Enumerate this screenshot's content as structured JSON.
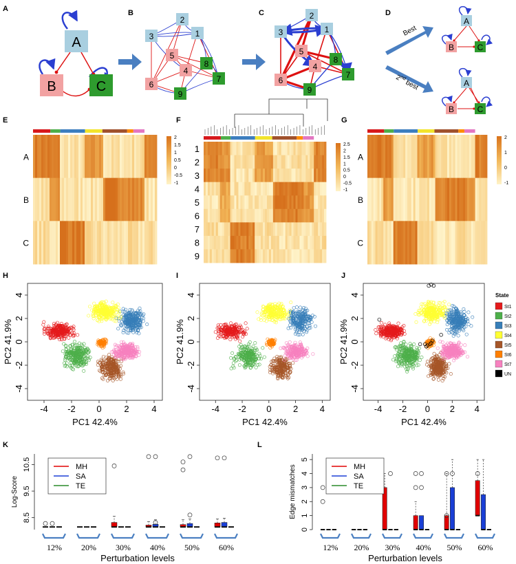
{
  "panels": {
    "A": "A",
    "B": "B",
    "C": "C",
    "D": "D",
    "E": "E",
    "F": "F",
    "G": "G",
    "H": "H",
    "I": "I",
    "J": "J",
    "K": "K",
    "L": "L"
  },
  "network_A": {
    "nodes": [
      "A",
      "B",
      "C"
    ]
  },
  "network_BC": {
    "nodes": [
      "1",
      "2",
      "3",
      "4",
      "5",
      "6",
      "7",
      "8",
      "9"
    ]
  },
  "network_D": {
    "best_label": "Best",
    "second_label": "2",
    "second_sup": "nd",
    "second_rest": " best",
    "nodes": [
      "A",
      "B",
      "C"
    ]
  },
  "heatmaps": {
    "E": {
      "rows": [
        "A",
        "B",
        "C"
      ],
      "scale": [
        "2",
        "1.5",
        "1",
        "0.5",
        "0",
        "-0.5",
        "-1"
      ]
    },
    "F": {
      "rows": [
        "1",
        "2",
        "3",
        "4",
        "5",
        "6",
        "7",
        "8",
        "9"
      ],
      "scale": [
        "2.5",
        "2",
        "1.5",
        "1",
        "0.5",
        "0",
        "-0.5",
        "-1"
      ]
    },
    "G": {
      "rows": [
        "A",
        "B",
        "C"
      ],
      "scale": [
        "2",
        "1",
        "0",
        "-1"
      ]
    }
  },
  "pca": {
    "xlabel": "PC1 42.4%",
    "ylabel": "PC2 41.9%",
    "xticks": [
      "-4",
      "-2",
      "0",
      "2",
      "4"
    ],
    "yticks": [
      "-4",
      "-2",
      "0",
      "2",
      "4"
    ],
    "legend_title": "State",
    "states": [
      {
        "name": "St1",
        "color": "#e41a1c"
      },
      {
        "name": "St2",
        "color": "#4daf4a"
      },
      {
        "name": "St3",
        "color": "#377eb8"
      },
      {
        "name": "St4",
        "color": "#ffff33"
      },
      {
        "name": "St5",
        "color": "#a65628"
      },
      {
        "name": "St6",
        "color": "#ff7f00"
      },
      {
        "name": "St7",
        "color": "#f781bf"
      },
      {
        "name": "UN",
        "color": "#000000"
      }
    ]
  },
  "chart_data": [
    {
      "type": "box",
      "panel": "K",
      "ylabel": "Log-Score",
      "xlabel": "Perturbation levels",
      "categories": [
        "12%",
        "20%",
        "30%",
        "40%",
        "50%",
        "60%"
      ],
      "yticks": [
        "8.5",
        "9.5",
        "10.5"
      ],
      "ylim": [
        8.05,
        10.9
      ],
      "legend": [
        {
          "name": "MH",
          "color": "#e00000"
        },
        {
          "name": "SA",
          "color": "#1a3fd6"
        },
        {
          "name": "TE",
          "color": "#2a8a2a"
        }
      ],
      "series": [
        {
          "name": "MH",
          "median": [
            8.15,
            8.15,
            8.15,
            8.15,
            8.15,
            8.15
          ],
          "q3": [
            8.15,
            8.15,
            8.32,
            8.22,
            8.24,
            8.3
          ],
          "whisker_hi": [
            8.15,
            8.15,
            8.55,
            8.35,
            8.42,
            8.45
          ]
        },
        {
          "name": "SA",
          "median": [
            8.15,
            8.15,
            8.15,
            8.15,
            8.15,
            8.15
          ],
          "q3": [
            8.15,
            8.15,
            8.15,
            8.25,
            8.28,
            8.32
          ],
          "whisker_hi": [
            8.15,
            8.15,
            8.15,
            8.42,
            8.45,
            8.48
          ]
        },
        {
          "name": "TE",
          "median": [
            8.15,
            8.15,
            8.15,
            8.15,
            8.15,
            8.15
          ],
          "q3": [
            8.15,
            8.15,
            8.15,
            8.15,
            8.15,
            8.15
          ],
          "whisker_hi": [
            8.15,
            8.15,
            8.15,
            8.15,
            8.15,
            8.15
          ]
        }
      ]
    },
    {
      "type": "box",
      "panel": "L",
      "ylabel": "Edge mismatches",
      "xlabel": "Perturbation levels",
      "categories": [
        "12%",
        "20%",
        "30%",
        "40%",
        "50%",
        "60%"
      ],
      "yticks": [
        "0",
        "1",
        "2",
        "3",
        "4",
        "5"
      ],
      "ylim": [
        0,
        5.4
      ],
      "legend": [
        {
          "name": "MH",
          "color": "#e00000"
        },
        {
          "name": "SA",
          "color": "#1a3fd6"
        },
        {
          "name": "TE",
          "color": "#2a8a2a"
        }
      ],
      "series": [
        {
          "name": "MH",
          "median": [
            0,
            0,
            0,
            0,
            0,
            1
          ],
          "q3": [
            0,
            0,
            3,
            1,
            1,
            3.5
          ],
          "whisker_hi": [
            0,
            0,
            4,
            2,
            4,
            5
          ]
        },
        {
          "name": "SA",
          "median": [
            0,
            0,
            0,
            0,
            0,
            0
          ],
          "q3": [
            0,
            0,
            0,
            1,
            3,
            2.5
          ],
          "whisker_hi": [
            0,
            0,
            0,
            1,
            5,
            5
          ]
        },
        {
          "name": "TE",
          "median": [
            0,
            0,
            0,
            0,
            0,
            0
          ],
          "q3": [
            0,
            0,
            0,
            0,
            0,
            0
          ],
          "whisker_hi": [
            0,
            0,
            0,
            0,
            0,
            0
          ]
        }
      ]
    }
  ]
}
